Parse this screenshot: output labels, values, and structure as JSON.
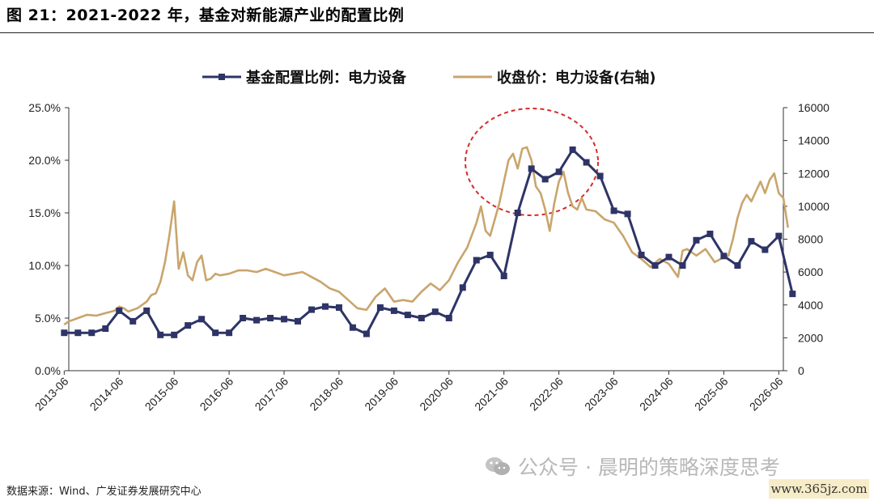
{
  "figure": {
    "title": "图 21：2021-2022 年，基金对新能源产业的配置比例",
    "source": "数据来源：Wind、广发证券发展研究中心",
    "watermark": "公众号 · 晨明的策略深度思考",
    "watermark_icon": "wechat-icon",
    "site_badge": "www.365jz.com"
  },
  "chart_data": {
    "type": "line",
    "legend_position": "top-center",
    "grid": false,
    "colors": {
      "series1": "#2e3466",
      "series2": "#c9a56c",
      "highlight": "#d52b2b"
    },
    "x_ticks": [
      "2013-06",
      "2014-06",
      "2015-06",
      "2016-06",
      "2017-06",
      "2018-06",
      "2019-06",
      "2020-06",
      "2021-06",
      "2022-06",
      "2023-06",
      "2024-06",
      "2025-06",
      "2026-06"
    ],
    "y_left": {
      "ticks": [
        "0.0%",
        "5.0%",
        "10.0%",
        "15.0%",
        "20.0%",
        "25.0%"
      ],
      "range": [
        0,
        25
      ]
    },
    "y_right": {
      "ticks": [
        "0",
        "2000",
        "4000",
        "6000",
        "8000",
        "10000",
        "12000",
        "14000",
        "16000"
      ],
      "range": [
        0,
        16000
      ]
    },
    "series": [
      {
        "name": "基金配置比例：电力设备",
        "axis": "left",
        "marker": "square",
        "points": [
          [
            "2013-06",
            3.6
          ],
          [
            "2013-09",
            3.6
          ],
          [
            "2013-12",
            3.6
          ],
          [
            "2014-03",
            4.0
          ],
          [
            "2014-06",
            5.7
          ],
          [
            "2014-09",
            4.7
          ],
          [
            "2014-12",
            5.7
          ],
          [
            "2015-03",
            3.4
          ],
          [
            "2015-06",
            3.4
          ],
          [
            "2015-09",
            4.3
          ],
          [
            "2015-12",
            4.9
          ],
          [
            "2016-03",
            3.6
          ],
          [
            "2016-06",
            3.6
          ],
          [
            "2016-09",
            5.0
          ],
          [
            "2016-12",
            4.8
          ],
          [
            "2017-03",
            5.0
          ],
          [
            "2017-06",
            4.9
          ],
          [
            "2017-09",
            4.7
          ],
          [
            "2017-12",
            5.8
          ],
          [
            "2018-03",
            6.1
          ],
          [
            "2018-06",
            6.0
          ],
          [
            "2018-09",
            4.1
          ],
          [
            "2018-12",
            3.5
          ],
          [
            "2019-03",
            6.0
          ],
          [
            "2019-06",
            5.7
          ],
          [
            "2019-09",
            5.3
          ],
          [
            "2019-12",
            5.0
          ],
          [
            "2020-03",
            5.6
          ],
          [
            "2020-06",
            5.0
          ],
          [
            "2020-09",
            7.9
          ],
          [
            "2020-12",
            10.5
          ],
          [
            "2021-03",
            11.0
          ],
          [
            "2021-06",
            9.0
          ],
          [
            "2021-09",
            15.0
          ],
          [
            "2021-12",
            19.2
          ],
          [
            "2022-03",
            18.2
          ],
          [
            "2022-06",
            18.9
          ],
          [
            "2022-09",
            21.0
          ],
          [
            "2022-12",
            19.8
          ],
          [
            "2023-03",
            18.5
          ],
          [
            "2023-06",
            15.2
          ],
          [
            "2023-09",
            14.9
          ],
          [
            "2023-12",
            11.0
          ],
          [
            "2024-03",
            10.0
          ],
          [
            "2024-06",
            10.8
          ],
          [
            "2024-09",
            10.0
          ],
          [
            "2024-12",
            12.4
          ],
          [
            "2025-03",
            13.0
          ],
          [
            "2025-06",
            10.9
          ],
          [
            "2025-09",
            10.0
          ],
          [
            "2025-12",
            12.3
          ],
          [
            "2026-03",
            11.5
          ],
          [
            "2026-06",
            12.8
          ],
          [
            "2026-09",
            7.3
          ]
        ]
      },
      {
        "name": "收盘价：电力设备(右轴)",
        "axis": "right",
        "points": [
          [
            "2013-06",
            2800
          ],
          [
            "2013-07",
            3000
          ],
          [
            "2013-09",
            3200
          ],
          [
            "2013-11",
            3400
          ],
          [
            "2014-01",
            3350
          ],
          [
            "2014-03",
            3500
          ],
          [
            "2014-05",
            3650
          ],
          [
            "2014-06",
            3900
          ],
          [
            "2014-07",
            3800
          ],
          [
            "2014-08",
            3600
          ],
          [
            "2014-10",
            3800
          ],
          [
            "2014-12",
            4200
          ],
          [
            "2015-01",
            4600
          ],
          [
            "2015-02",
            4700
          ],
          [
            "2015-03",
            5400
          ],
          [
            "2015-04",
            6600
          ],
          [
            "2015-05",
            8300
          ],
          [
            "2015-06",
            10300
          ],
          [
            "2015-07",
            6200
          ],
          [
            "2015-08",
            7200
          ],
          [
            "2015-09",
            5800
          ],
          [
            "2015-10",
            5500
          ],
          [
            "2015-11",
            6600
          ],
          [
            "2015-12",
            7000
          ],
          [
            "2016-01",
            5500
          ],
          [
            "2016-02",
            5600
          ],
          [
            "2016-03",
            5900
          ],
          [
            "2016-04",
            5800
          ],
          [
            "2016-06",
            5900
          ],
          [
            "2016-08",
            6100
          ],
          [
            "2016-10",
            6100
          ],
          [
            "2016-12",
            6000
          ],
          [
            "2017-02",
            6200
          ],
          [
            "2017-04",
            6000
          ],
          [
            "2017-06",
            5800
          ],
          [
            "2017-08",
            5900
          ],
          [
            "2017-10",
            6000
          ],
          [
            "2017-12",
            5700
          ],
          [
            "2018-02",
            5400
          ],
          [
            "2018-04",
            5000
          ],
          [
            "2018-06",
            4800
          ],
          [
            "2018-08",
            4300
          ],
          [
            "2018-10",
            3800
          ],
          [
            "2018-12",
            3700
          ],
          [
            "2019-02",
            4500
          ],
          [
            "2019-04",
            5000
          ],
          [
            "2019-06",
            4200
          ],
          [
            "2019-08",
            4300
          ],
          [
            "2019-10",
            4200
          ],
          [
            "2019-12",
            4800
          ],
          [
            "2020-02",
            5300
          ],
          [
            "2020-04",
            4900
          ],
          [
            "2020-06",
            5500
          ],
          [
            "2020-08",
            6600
          ],
          [
            "2020-10",
            7500
          ],
          [
            "2020-12",
            9000
          ],
          [
            "2021-01",
            10000
          ],
          [
            "2021-02",
            8500
          ],
          [
            "2021-03",
            8200
          ],
          [
            "2021-04",
            9200
          ],
          [
            "2021-05",
            10200
          ],
          [
            "2021-06",
            11500
          ],
          [
            "2021-07",
            12800
          ],
          [
            "2021-08",
            13200
          ],
          [
            "2021-09",
            12300
          ],
          [
            "2021-10",
            13500
          ],
          [
            "2021-11",
            13600
          ],
          [
            "2021-12",
            12800
          ],
          [
            "2022-01",
            11200
          ],
          [
            "2022-02",
            10800
          ],
          [
            "2022-03",
            9800
          ],
          [
            "2022-04",
            8500
          ],
          [
            "2022-05",
            10200
          ],
          [
            "2022-06",
            11500
          ],
          [
            "2022-07",
            12100
          ],
          [
            "2022-08",
            10800
          ],
          [
            "2022-09",
            10000
          ],
          [
            "2022-10",
            9800
          ],
          [
            "2022-11",
            10500
          ],
          [
            "2022-12",
            9800
          ],
          [
            "2023-02",
            9700
          ],
          [
            "2023-04",
            9200
          ],
          [
            "2023-06",
            9000
          ],
          [
            "2023-08",
            8200
          ],
          [
            "2023-10",
            7200
          ],
          [
            "2023-12",
            6800
          ],
          [
            "2024-02",
            6300
          ],
          [
            "2024-04",
            6800
          ],
          [
            "2024-06",
            6500
          ],
          [
            "2024-08",
            5700
          ],
          [
            "2024-09",
            7300
          ],
          [
            "2024-10",
            7400
          ],
          [
            "2024-12",
            7000
          ],
          [
            "2025-02",
            7400
          ],
          [
            "2025-04",
            6600
          ],
          [
            "2025-06",
            6900
          ],
          [
            "2025-07",
            7000
          ],
          [
            "2025-08",
            8000
          ],
          [
            "2025-09",
            9300
          ],
          [
            "2025-10",
            10200
          ],
          [
            "2025-11",
            10700
          ],
          [
            "2025-12",
            10300
          ],
          [
            "2026-01",
            10900
          ],
          [
            "2026-02",
            11500
          ],
          [
            "2026-03",
            10800
          ],
          [
            "2026-04",
            11600
          ],
          [
            "2026-05",
            12000
          ],
          [
            "2026-06",
            10800
          ],
          [
            "2026-07",
            10500
          ],
          [
            "2026-08",
            8700
          ]
        ]
      }
    ]
  }
}
